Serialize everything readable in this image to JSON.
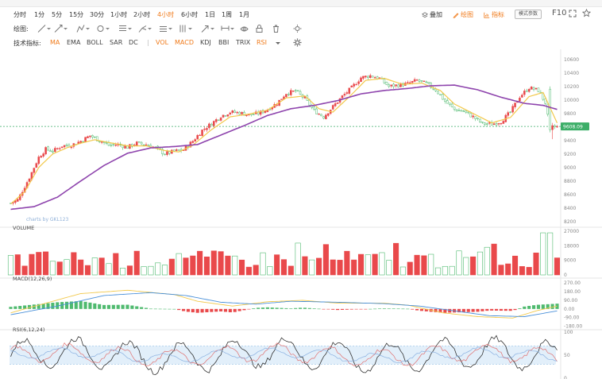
{
  "timeframes": [
    {
      "label": "分时",
      "active": false
    },
    {
      "label": "1分",
      "active": false
    },
    {
      "label": "5分",
      "active": false
    },
    {
      "label": "15分",
      "active": false
    },
    {
      "label": "30分",
      "active": false
    },
    {
      "label": "1小时",
      "active": false
    },
    {
      "label": "2小时",
      "active": false
    },
    {
      "label": "4小时",
      "active": true
    },
    {
      "label": "6小时",
      "active": false
    },
    {
      "label": "1日",
      "active": false
    },
    {
      "label": "1周",
      "active": false
    },
    {
      "label": "1月",
      "active": false
    }
  ],
  "toolbar_right": {
    "overlay_label": "叠加",
    "draw_label": "绘图",
    "indicator_label": "指标",
    "params_button": "模式参数",
    "f10_label": "F10"
  },
  "draw_tools": {
    "label": "绘图:",
    "tools": [
      "line-tool-icon",
      "ray-tool-icon",
      "polyline-tool-icon",
      "circle-tool-icon",
      "fib-tool-icon",
      "pitchfork-tool-icon",
      "channel-tool-icon",
      "gann-tool-icon",
      "arrow-tool-icon",
      "measure-tool-icon",
      "visibility-icon",
      "lock-icon",
      "trash-icon",
      "settings-icon"
    ]
  },
  "indicator_bar": {
    "label": "技术指标:",
    "main": [
      {
        "label": "MA",
        "on": true
      },
      {
        "label": "EMA",
        "on": false
      },
      {
        "label": "BOLL",
        "on": false
      },
      {
        "label": "SAR",
        "on": false
      },
      {
        "label": "DC",
        "on": false
      }
    ],
    "sub": [
      {
        "label": "VOL",
        "on": true
      },
      {
        "label": "MACD",
        "on": true
      },
      {
        "label": "KDJ",
        "on": false
      },
      {
        "label": "BBI",
        "on": false
      },
      {
        "label": "TRIX",
        "on": false
      },
      {
        "label": "RSI",
        "on": true
      }
    ]
  },
  "colors": {
    "up": "#e9494b",
    "down": "#4fba6f",
    "ma_fast": "#f2c94c",
    "ma_slow": "#8e44ad",
    "price_tag": "#3cae68",
    "macd_dif": "#f2c94c",
    "macd_dea": "#4a90d9",
    "rsi_band": "#d6e8f8"
  },
  "chart_data": [
    {
      "type": "candlestick",
      "panel": "price",
      "watermark": "charts by GKL123",
      "y_ticks": [
        "10600",
        "10400",
        "10200",
        "10000",
        "9800",
        "9600",
        "9400",
        "9200",
        "9000",
        "8800",
        "8600",
        "8400",
        "8200"
      ],
      "ylim": [
        8150,
        10680
      ],
      "current_price": "9608.09",
      "close_path": [
        [
          0,
          8470
        ],
        [
          3,
          8520
        ],
        [
          8,
          8850
        ],
        [
          12,
          9150
        ],
        [
          15,
          9270
        ],
        [
          18,
          9240
        ],
        [
          22,
          9320
        ],
        [
          26,
          9330
        ],
        [
          30,
          9390
        ],
        [
          34,
          9470
        ],
        [
          38,
          9400
        ],
        [
          42,
          9330
        ],
        [
          46,
          9340
        ],
        [
          50,
          9300
        ],
        [
          54,
          9360
        ],
        [
          58,
          9340
        ],
        [
          62,
          9290
        ],
        [
          66,
          9200
        ],
        [
          70,
          9240
        ],
        [
          74,
          9260
        ],
        [
          78,
          9390
        ],
        [
          82,
          9550
        ],
        [
          86,
          9650
        ],
        [
          90,
          9760
        ],
        [
          94,
          9820
        ],
        [
          98,
          9810
        ],
        [
          102,
          9780
        ],
        [
          106,
          9800
        ],
        [
          110,
          9860
        ],
        [
          114,
          9950
        ],
        [
          118,
          10100
        ],
        [
          122,
          10130
        ],
        [
          126,
          10020
        ],
        [
          130,
          9840
        ],
        [
          134,
          9750
        ],
        [
          138,
          9900
        ],
        [
          142,
          10050
        ],
        [
          146,
          10180
        ],
        [
          150,
          10330
        ],
        [
          154,
          10360
        ],
        [
          158,
          10320
        ],
        [
          162,
          10200
        ],
        [
          166,
          10220
        ],
        [
          170,
          10240
        ],
        [
          174,
          10290
        ],
        [
          178,
          10240
        ],
        [
          182,
          10150
        ],
        [
          186,
          9980
        ],
        [
          190,
          9860
        ],
        [
          194,
          9830
        ],
        [
          198,
          9750
        ],
        [
          202,
          9650
        ],
        [
          206,
          9640
        ],
        [
          210,
          9680
        ],
        [
          214,
          9820
        ],
        [
          218,
          10050
        ],
        [
          222,
          10180
        ],
        [
          226,
          10140
        ],
        [
          229,
          9960
        ],
        [
          231,
          9560
        ],
        [
          234,
          9600
        ]
      ],
      "series": [
        {
          "name": "MA-fast",
          "values": [
            [
              0,
              8460
            ],
            [
              6,
              8640
            ],
            [
              12,
              9000
            ],
            [
              18,
              9200
            ],
            [
              24,
              9290
            ],
            [
              30,
              9360
            ],
            [
              36,
              9410
            ],
            [
              42,
              9370
            ],
            [
              50,
              9320
            ],
            [
              58,
              9320
            ],
            [
              66,
              9250
            ],
            [
              72,
              9230
            ],
            [
              78,
              9330
            ],
            [
              86,
              9560
            ],
            [
              94,
              9750
            ],
            [
              102,
              9790
            ],
            [
              110,
              9850
            ],
            [
              118,
              10030
            ],
            [
              126,
              10060
            ],
            [
              132,
              9870
            ],
            [
              138,
              9820
            ],
            [
              146,
              10080
            ],
            [
              152,
              10290
            ],
            [
              160,
              10320
            ],
            [
              168,
              10230
            ],
            [
              176,
              10250
            ],
            [
              184,
              10140
            ],
            [
              190,
              9940
            ],
            [
              198,
              9800
            ],
            [
              206,
              9660
            ],
            [
              214,
              9740
            ],
            [
              222,
              10050
            ],
            [
              228,
              10110
            ],
            [
              234,
              9660
            ]
          ]
        },
        {
          "name": "MA-slow",
          "values": [
            [
              0,
              8380
            ],
            [
              10,
              8420
            ],
            [
              20,
              8560
            ],
            [
              30,
              8800
            ],
            [
              40,
              9030
            ],
            [
              50,
              9210
            ],
            [
              60,
              9290
            ],
            [
              70,
              9310
            ],
            [
              80,
              9340
            ],
            [
              90,
              9480
            ],
            [
              100,
              9620
            ],
            [
              110,
              9770
            ],
            [
              120,
              9870
            ],
            [
              130,
              9920
            ],
            [
              140,
              9990
            ],
            [
              150,
              10090
            ],
            [
              160,
              10140
            ],
            [
              170,
              10170
            ],
            [
              180,
              10210
            ],
            [
              190,
              10220
            ],
            [
              200,
              10150
            ],
            [
              210,
              10040
            ],
            [
              220,
              9950
            ],
            [
              228,
              9920
            ],
            [
              234,
              9860
            ]
          ]
        }
      ]
    },
    {
      "type": "bar",
      "panel": "volume",
      "title": "VOLUME",
      "y_ticks": [
        "27000",
        "18000",
        "9000",
        "0"
      ],
      "ylim": [
        0,
        27000
      ]
    },
    {
      "type": "bar+line",
      "panel": "macd",
      "title": "MACD(12,26,9)",
      "y_ticks": [
        "270.00",
        "180.00",
        "90.00",
        "0.00",
        "-90.00",
        "-180.00"
      ],
      "ylim": [
        -200,
        280
      ]
    },
    {
      "type": "line",
      "panel": "rsi",
      "title": "RSI(6,12,24)",
      "y_ticks": [
        "100",
        "50",
        "0"
      ],
      "ylim": [
        0,
        100
      ]
    }
  ]
}
